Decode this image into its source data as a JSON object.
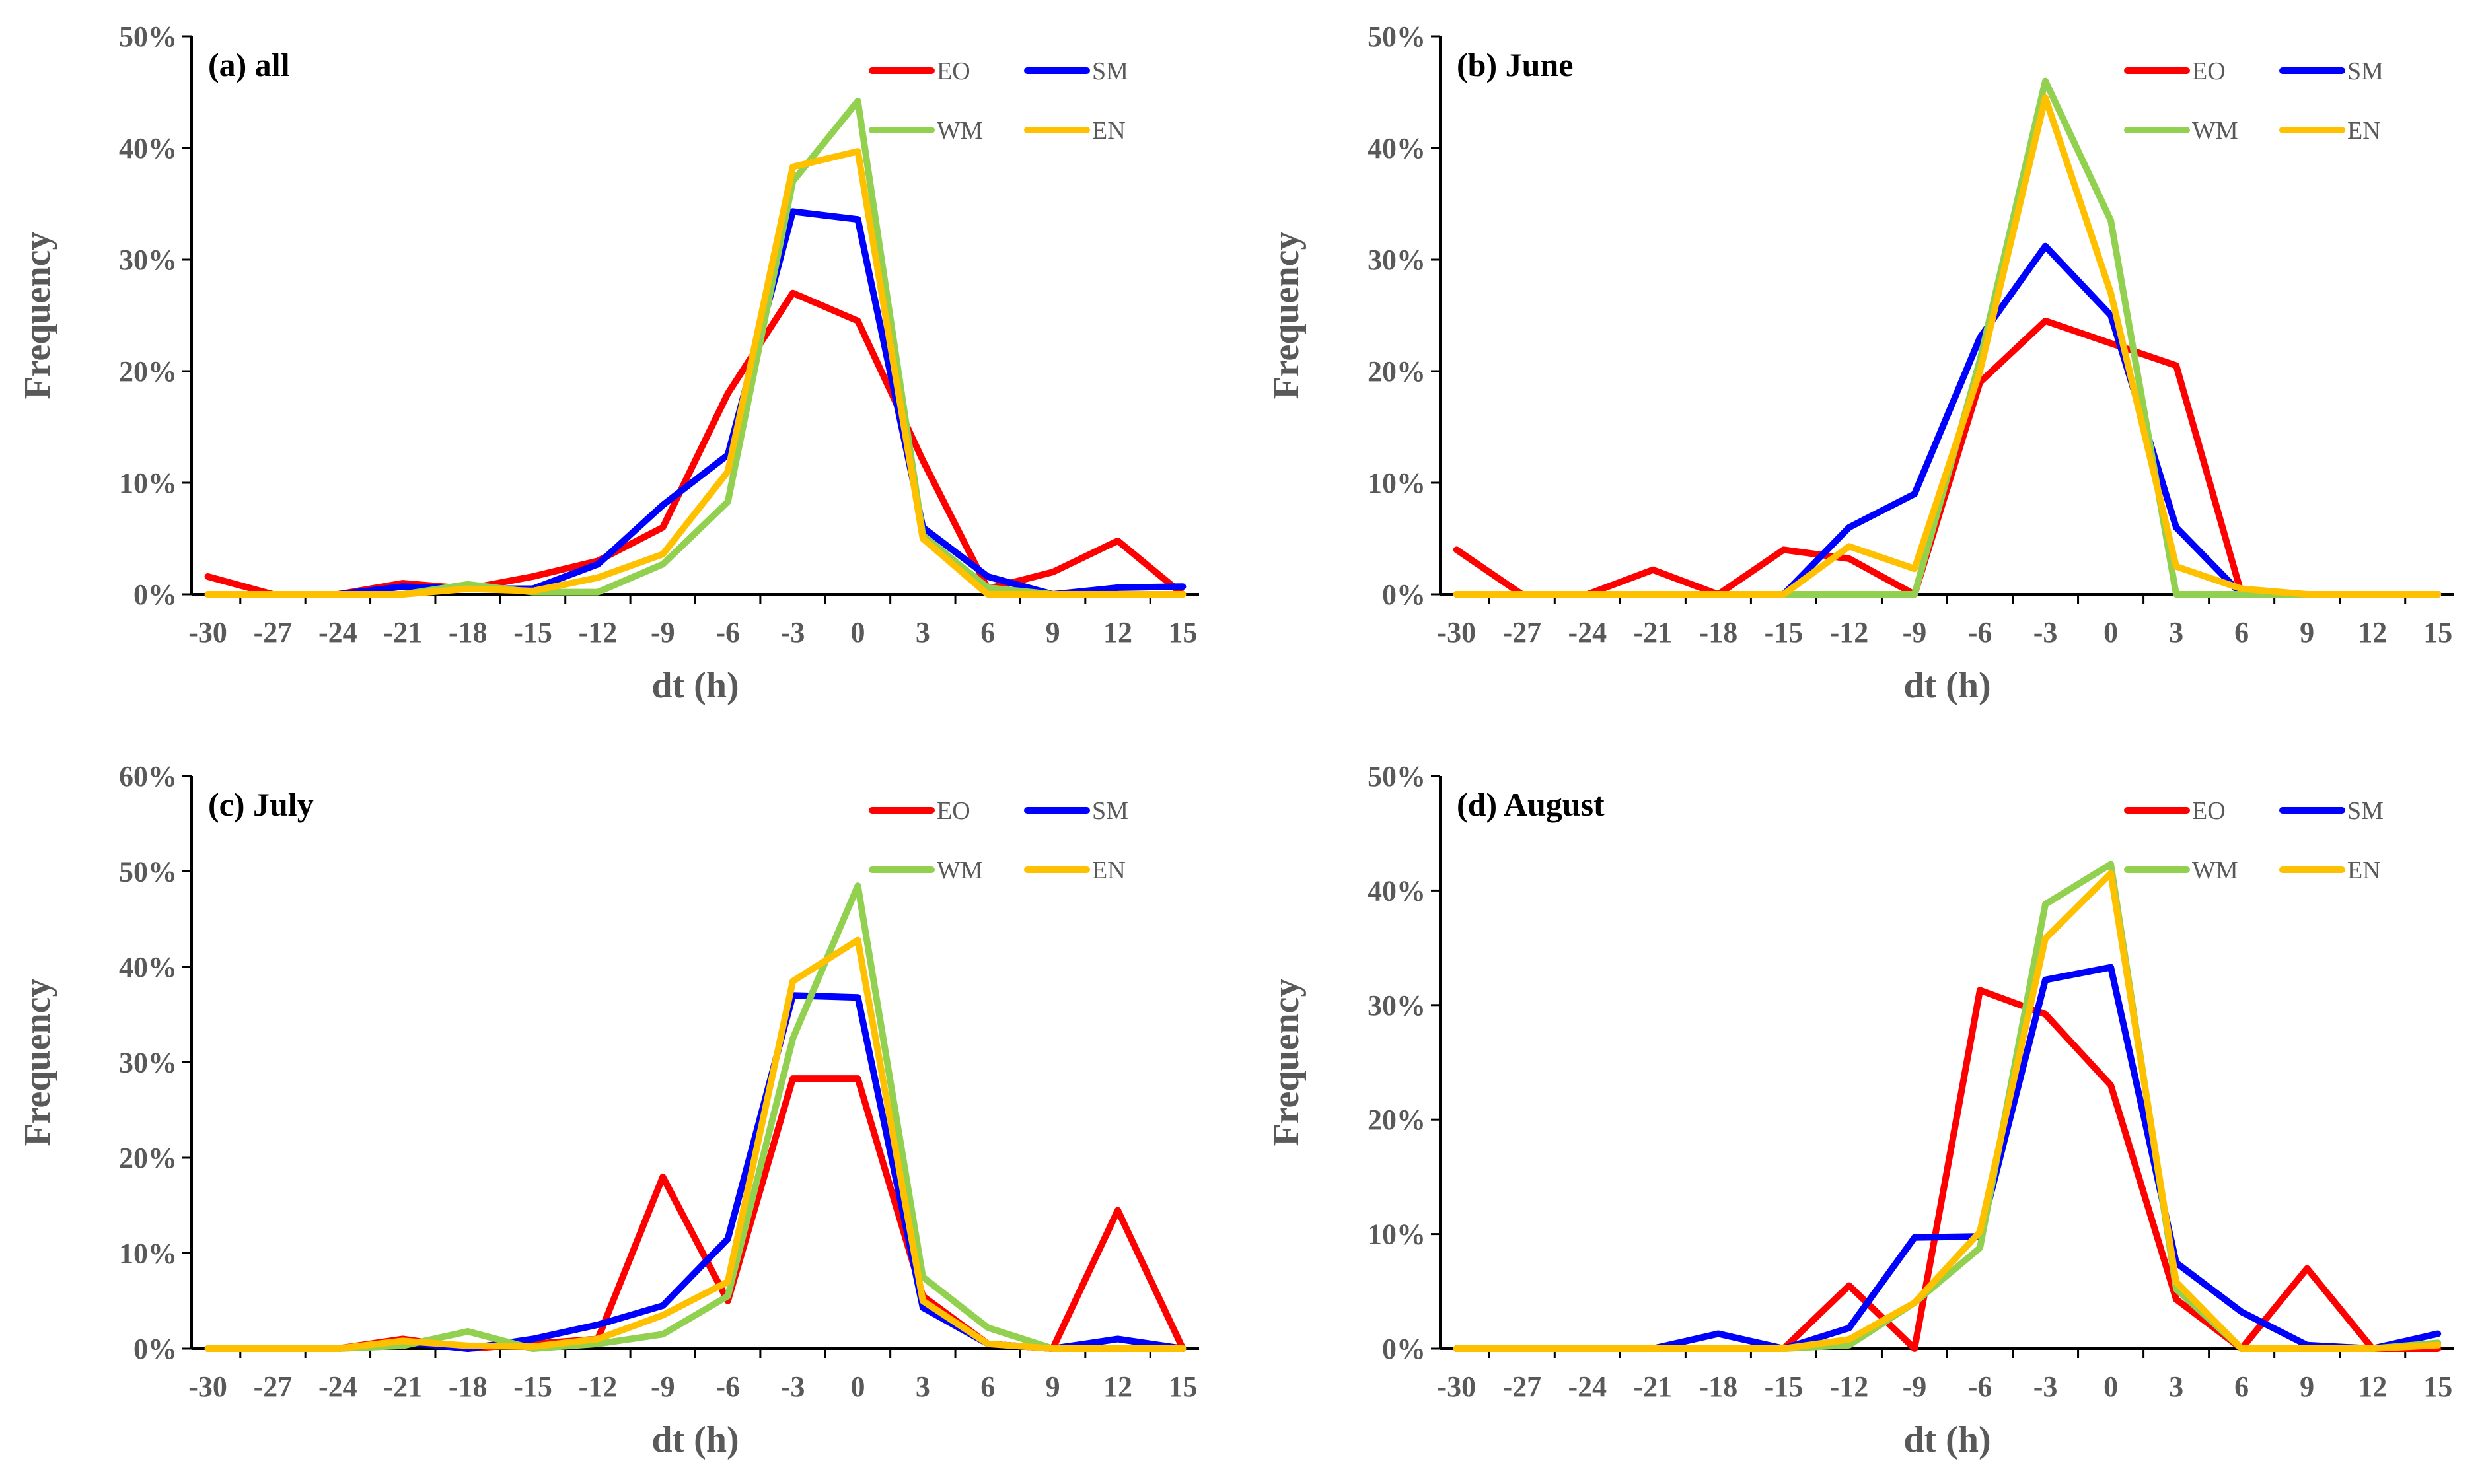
{
  "chart_data": [
    {
      "type": "line",
      "title": "(a) all",
      "xlabel": "dt (h)",
      "ylabel": "Frequency",
      "x": [
        -30,
        -27,
        -24,
        -21,
        -18,
        -15,
        -12,
        -9,
        -6,
        -3,
        0,
        3,
        6,
        9,
        12,
        15
      ],
      "x_tick_labels": [
        "-30",
        "-27",
        "-24",
        "-21",
        "-18",
        "-15",
        "-12",
        "-9",
        "-6",
        "-3",
        "0",
        "3",
        "6",
        "9",
        "12",
        "15"
      ],
      "ylim": [
        0,
        50
      ],
      "y_ticks": [
        0,
        10,
        20,
        30,
        40,
        50
      ],
      "y_tick_labels": [
        "0%",
        "10%",
        "20%",
        "30%",
        "40%",
        "50%"
      ],
      "legend_position": "top-right",
      "series": [
        {
          "name": "EO",
          "color": "#ff0000",
          "values": [
            1.6,
            0,
            0,
            1,
            0.5,
            1.6,
            3,
            6,
            18,
            27,
            24.5,
            12,
            0.5,
            2,
            4.8,
            0
          ]
        },
        {
          "name": "SM",
          "color": "#0000ff",
          "values": [
            0,
            0,
            0,
            0.7,
            0.5,
            0.5,
            2.7,
            8,
            12.5,
            34.3,
            33.6,
            6,
            1.6,
            0,
            0.6,
            0.7
          ]
        },
        {
          "name": "WM",
          "color": "#92d050",
          "values": [
            0,
            0,
            0,
            0,
            0.9,
            0.2,
            0.2,
            2.7,
            8.3,
            37,
            44.2,
            5.3,
            0.6,
            0,
            0,
            0
          ]
        },
        {
          "name": "EN",
          "color": "#ffc000",
          "values": [
            0,
            0,
            0,
            0,
            0.5,
            0.3,
            1.5,
            3.6,
            11,
            38.3,
            39.7,
            5,
            0,
            0,
            0,
            0
          ]
        }
      ]
    },
    {
      "type": "line",
      "title": "(b) June",
      "xlabel": "dt (h)",
      "ylabel": "Frequency",
      "x": [
        -30,
        -27,
        -24,
        -21,
        -18,
        -15,
        -12,
        -9,
        -6,
        -3,
        0,
        3,
        6,
        9,
        12,
        15
      ],
      "x_tick_labels": [
        "-30",
        "-27",
        "-24",
        "-21",
        "-18",
        "-15",
        "-12",
        "-9",
        "-6",
        "-3",
        "0",
        "3",
        "6",
        "9",
        "12",
        "15"
      ],
      "ylim": [
        0,
        50
      ],
      "y_ticks": [
        0,
        10,
        20,
        30,
        40,
        50
      ],
      "y_tick_labels": [
        "0%",
        "10%",
        "20%",
        "30%",
        "40%",
        "50%"
      ],
      "legend_position": "top-right",
      "series": [
        {
          "name": "EO",
          "color": "#ff0000",
          "values": [
            4,
            0,
            0,
            2.2,
            0,
            4,
            3.2,
            0,
            19,
            24.5,
            22.5,
            20.5,
            0,
            0,
            0,
            0
          ]
        },
        {
          "name": "SM",
          "color": "#0000ff",
          "values": [
            0,
            0,
            0,
            0,
            0,
            0,
            6,
            9,
            23,
            31.2,
            25,
            6,
            0,
            0,
            0,
            0
          ]
        },
        {
          "name": "WM",
          "color": "#92d050",
          "values": [
            0,
            0,
            0,
            0,
            0,
            0,
            0,
            0,
            21,
            46,
            33.5,
            0,
            0,
            0,
            0,
            0
          ]
        },
        {
          "name": "EN",
          "color": "#ffc000",
          "values": [
            0,
            0,
            0,
            0,
            0,
            0,
            4.3,
            2.3,
            20,
            44.5,
            27,
            2.5,
            0.5,
            0,
            0,
            0
          ]
        }
      ]
    },
    {
      "type": "line",
      "title": "(c) July",
      "xlabel": "dt (h)",
      "ylabel": "Frequency",
      "x": [
        -30,
        -27,
        -24,
        -21,
        -18,
        -15,
        -12,
        -9,
        -6,
        -3,
        0,
        3,
        6,
        9,
        12,
        15
      ],
      "x_tick_labels": [
        "-30",
        "-27",
        "-24",
        "-21",
        "-18",
        "-15",
        "-12",
        "-9",
        "-6",
        "-3",
        "0",
        "3",
        "6",
        "9",
        "12",
        "15"
      ],
      "ylim": [
        0,
        60
      ],
      "y_ticks": [
        0,
        10,
        20,
        30,
        40,
        50,
        60
      ],
      "y_tick_labels": [
        "0%",
        "10%",
        "20%",
        "30%",
        "40%",
        "50%",
        "60%"
      ],
      "legend_position": "top-right",
      "series": [
        {
          "name": "EO",
          "color": "#ff0000",
          "values": [
            0,
            0,
            0,
            1,
            0,
            0.5,
            1,
            18,
            5,
            28.3,
            28.3,
            5.5,
            0.5,
            0,
            14.5,
            0
          ]
        },
        {
          "name": "SM",
          "color": "#0000ff",
          "values": [
            0,
            0,
            0,
            0.7,
            0,
            1,
            2.5,
            4.5,
            11.5,
            37,
            36.8,
            4.3,
            0.5,
            0,
            1,
            0
          ]
        },
        {
          "name": "WM",
          "color": "#92d050",
          "values": [
            0,
            0,
            0,
            0.3,
            1.8,
            0,
            0.5,
            1.5,
            5.5,
            32.5,
            48.5,
            7.5,
            2.2,
            0,
            0,
            0
          ]
        },
        {
          "name": "EN",
          "color": "#ffc000",
          "values": [
            0,
            0,
            0,
            0.8,
            0.3,
            0.2,
            1,
            3.5,
            7,
            38.5,
            42.8,
            5,
            0.5,
            0,
            0,
            0
          ]
        }
      ]
    },
    {
      "type": "line",
      "title": "(d) August",
      "xlabel": "dt (h)",
      "ylabel": "Frequency",
      "x": [
        -30,
        -27,
        -24,
        -21,
        -18,
        -15,
        -12,
        -9,
        -6,
        -3,
        0,
        3,
        6,
        9,
        12,
        15
      ],
      "x_tick_labels": [
        "-30",
        "-27",
        "-24",
        "-21",
        "-18",
        "-15",
        "-12",
        "-9",
        "-6",
        "-3",
        "0",
        "3",
        "6",
        "9",
        "12",
        "15"
      ],
      "ylim": [
        0,
        50
      ],
      "y_ticks": [
        0,
        10,
        20,
        30,
        40,
        50
      ],
      "y_tick_labels": [
        "0%",
        "10%",
        "20%",
        "30%",
        "40%",
        "50%"
      ],
      "legend_position": "top-right",
      "series": [
        {
          "name": "EO",
          "color": "#ff0000",
          "values": [
            0,
            0,
            0,
            0,
            0,
            0,
            5.5,
            0,
            31.3,
            29.2,
            23,
            4.3,
            0,
            7,
            0,
            0
          ]
        },
        {
          "name": "SM",
          "color": "#0000ff",
          "values": [
            0,
            0,
            0,
            0,
            1.3,
            0,
            1.8,
            9.7,
            9.8,
            32.2,
            33.3,
            7.5,
            3.2,
            0.3,
            0,
            1.3
          ]
        },
        {
          "name": "WM",
          "color": "#92d050",
          "values": [
            0,
            0,
            0,
            0,
            0,
            0,
            0.3,
            4,
            8.8,
            38.8,
            42.3,
            5.2,
            0,
            0,
            0,
            0.5
          ]
        },
        {
          "name": "EN",
          "color": "#ffc000",
          "values": [
            0,
            0,
            0,
            0,
            0,
            0,
            0.8,
            4,
            10.2,
            35.8,
            41.5,
            5.8,
            0,
            0,
            0,
            0.3
          ]
        }
      ]
    }
  ]
}
